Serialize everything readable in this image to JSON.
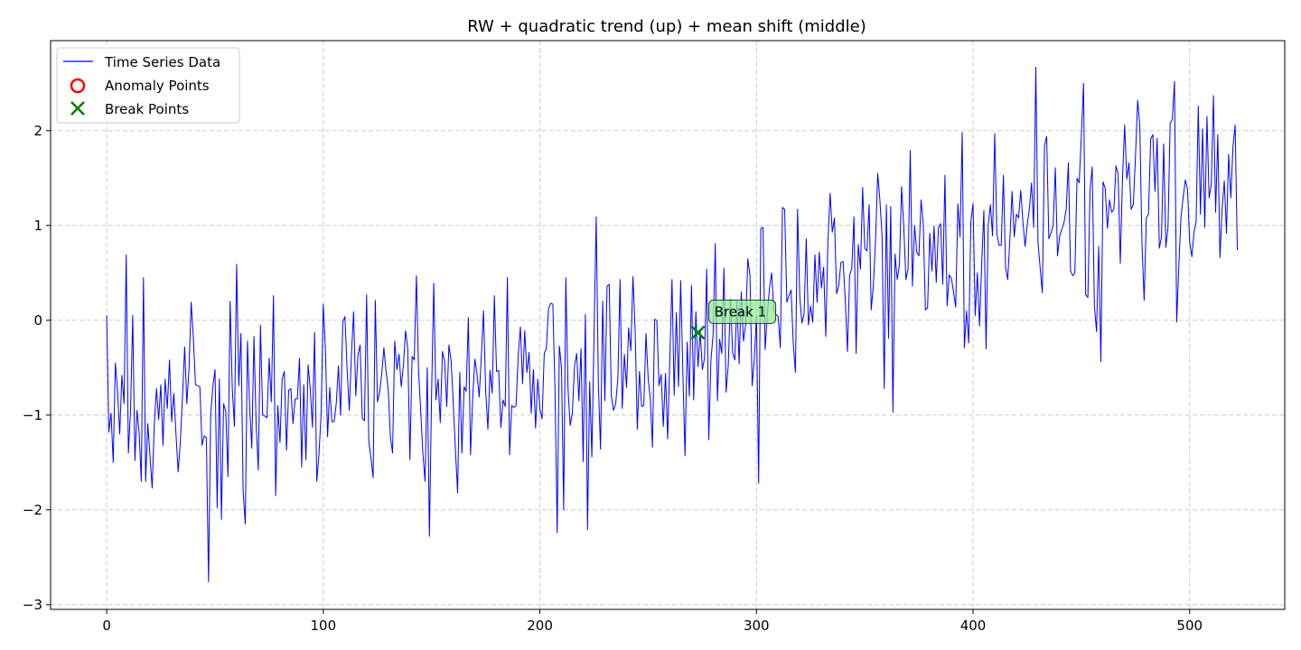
{
  "chart_data": {
    "type": "line",
    "title": "RW + quadratic trend (up) + mean shift (middle)",
    "xlabel": "",
    "ylabel": "",
    "xlim": [
      -25.9,
      543.9
    ],
    "ylim": [
      -3.05,
      2.95
    ],
    "x_ticks": [
      0,
      100,
      200,
      300,
      400,
      500
    ],
    "y_ticks": [
      -3,
      -2,
      -1,
      0,
      1,
      2
    ],
    "x_tick_labels": [
      "0",
      "100",
      "200",
      "300",
      "400",
      "500"
    ],
    "y_tick_labels": [
      "−3",
      "−2",
      "−1",
      "0",
      "1",
      "2"
    ],
    "grid": true,
    "legend_position": "top-left",
    "legend": [
      {
        "label": "Time Series Data",
        "marker": "line",
        "color": "#0000ff"
      },
      {
        "label": "Anomaly Points",
        "marker": "circle-open",
        "color": "#ff0000"
      },
      {
        "label": "Break Points",
        "marker": "x",
        "color": "#008000"
      }
    ],
    "series": [
      {
        "name": "Time Series Data",
        "color": "#0000ff",
        "x_start": 0,
        "x_step": 1,
        "y": [
          0.05,
          -1.18,
          -0.98,
          -1.5,
          -0.45,
          -0.75,
          -1.2,
          -0.58,
          -0.88,
          0.69,
          -1.4,
          -0.95,
          0.05,
          -1.48,
          -0.95,
          -1.2,
          -1.7,
          0.45,
          -1.7,
          -1.09,
          -1.43,
          -1.77,
          -1.1,
          -0.72,
          -1.05,
          -0.68,
          -1.32,
          -0.62,
          -0.93,
          -0.42,
          -1.07,
          -0.77,
          -1.2,
          -1.6,
          -1.29,
          -0.81,
          -0.28,
          -0.88,
          -0.52,
          0.19,
          -0.18,
          -0.68,
          -0.69,
          -0.7,
          -1.32,
          -1.22,
          -1.24,
          -2.76,
          -1.0,
          -0.7,
          -0.52,
          -1.98,
          -0.62,
          -2.1,
          -0.88,
          -0.96,
          -1.65,
          0.2,
          -0.72,
          -1.12,
          0.59,
          -0.69,
          -0.14,
          -1.8,
          -2.15,
          -0.22,
          -0.91,
          -1.35,
          -0.17,
          -1.1,
          -1.58,
          -0.05,
          -1.0,
          -1.01,
          -1.03,
          -0.4,
          -0.86,
          0.26,
          -1.85,
          -0.9,
          -1.29,
          -0.62,
          -0.54,
          -1.37,
          -0.74,
          -0.72,
          -1.09,
          -0.83,
          -0.83,
          -0.4,
          -1.55,
          -0.68,
          -1.47,
          -0.47,
          -0.72,
          -1.13,
          -0.13,
          -1.7,
          -1.42,
          -0.99,
          0.17,
          -0.31,
          -1.23,
          -0.71,
          -1.07,
          -1.07,
          -0.88,
          -0.48,
          -1.0,
          -0.02,
          0.04,
          -0.52,
          -0.95,
          -0.36,
          0.09,
          -0.8,
          -0.37,
          -0.26,
          -1.03,
          -1.06,
          0.27,
          -1.28,
          -1.45,
          -1.66,
          0.21,
          -0.86,
          -0.76,
          -0.56,
          -0.29,
          -0.54,
          -0.73,
          -1.23,
          -1.4,
          -0.22,
          -0.52,
          -0.36,
          -0.7,
          -0.48,
          -0.11,
          -0.3,
          -1.47,
          -0.38,
          -0.42,
          0.47,
          -0.54,
          -0.97,
          -1.41,
          -1.7,
          -0.5,
          -2.28,
          -0.78,
          0.39,
          -0.84,
          -0.62,
          -1.08,
          -0.33,
          -0.43,
          -0.91,
          -0.26,
          -0.43,
          -0.87,
          -1.37,
          -1.82,
          -0.55,
          -1.4,
          -0.7,
          -0.75,
          0.03,
          -1.42,
          -0.82,
          -0.41,
          -0.57,
          -0.81,
          -0.37,
          0.1,
          -0.75,
          -1.15,
          -0.53,
          -0.77,
          0.26,
          -0.54,
          -0.53,
          -1.13,
          -0.84,
          -0.91,
          0.45,
          -1.42,
          -0.9,
          -0.92,
          -0.9,
          -0.37,
          -0.07,
          -0.67,
          -0.11,
          -0.55,
          -0.34,
          -0.98,
          -0.52,
          -1.14,
          -0.62,
          -0.94,
          -1.04,
          -0.35,
          -0.3,
          0.12,
          0.18,
          0.17,
          -0.73,
          -2.24,
          -0.27,
          -0.5,
          -2.0,
          0.45,
          -0.72,
          -1.11,
          -0.98,
          -0.48,
          -0.35,
          -0.85,
          -0.3,
          -1.49,
          0.06,
          -2.21,
          -0.65,
          -1.44,
          -0.15,
          1.09,
          -0.68,
          -1.36,
          0.2,
          -0.85,
          0.36,
          0.38,
          -0.8,
          -0.95,
          -0.88,
          -0.61,
          0.43,
          -0.93,
          -0.36,
          -0.71,
          -0.08,
          -0.32,
          0.46,
          -0.1,
          -1.15,
          -0.54,
          -0.91,
          -0.9,
          -0.14,
          -0.61,
          -0.83,
          -1.34,
          0.01,
          0.0,
          -0.69,
          -0.57,
          -1.12,
          -0.56,
          -1.25,
          -0.4,
          0.43,
          -0.79,
          0.08,
          -0.7,
          0.42,
          -0.55,
          -1.43,
          -0.23,
          -0.8,
          0.37,
          -0.84,
          0.09,
          -0.49,
          -0.12,
          -0.52,
          -0.4,
          0.54,
          -1.26,
          -0.42,
          -0.15,
          0.81,
          -0.85,
          -0.2,
          -0.35,
          0.55,
          -0.76,
          -0.47,
          0.22,
          -0.34,
          -0.42,
          0.2,
          -0.46,
          0.3,
          -0.22,
          -0.05,
          0.65,
          0.47,
          -0.69,
          -0.41,
          0.05,
          -1.72,
          0.97,
          0.98,
          -0.31,
          0.06,
          0.34,
          0.5,
          0.1,
          0.06,
          0.04,
          -0.29,
          1.19,
          1.17,
          0.19,
          0.26,
          0.32,
          -0.24,
          -0.55,
          1.17,
          0.26,
          -0.03,
          0.07,
          0.86,
          -0.05,
          0.15,
          -0.02,
          0.69,
          0.19,
          0.72,
          0.34,
          0.56,
          -0.17,
          0.84,
          1.34,
          0.93,
          1.08,
          0.28,
          0.37,
          0.61,
          0.62,
          0.21,
          -0.33,
          0.47,
          0.55,
          1.09,
          -0.35,
          0.8,
          0.54,
          1.4,
          0.76,
          0.73,
          1.22,
          0.11,
          0.37,
          0.84,
          1.55,
          1.27,
          0.89,
          -0.72,
          1.22,
          -0.19,
          1.2,
          -0.97,
          0.7,
          0.43,
          0.58,
          1.41,
          0.99,
          0.43,
          0.54,
          1.79,
          0.36,
          1.0,
          0.72,
          0.68,
          1.27,
          1.02,
          0.11,
          0.13,
          0.92,
          0.52,
          0.99,
          0.4,
          0.98,
          1.02,
          0.38,
          1.53,
          0.15,
          0.48,
          0.44,
          0.3,
          0.14,
          1.23,
          0.88,
          1.98,
          -0.29,
          0.1,
          -0.24,
          1.04,
          1.23,
          0.05,
          0.5,
          -0.06,
          0.6,
          1.16,
          -0.3,
          1.0,
          1.22,
          0.89,
          1.97,
          0.91,
          0.79,
          0.79,
          1.53,
          0.56,
          0.43,
          0.86,
          1.36,
          0.88,
          1.12,
          1.08,
          1.37,
          1.04,
          0.78,
          1.01,
          1.18,
          1.45,
          0.98,
          2.67,
          0.82,
          0.55,
          0.29,
          1.84,
          1.94,
          0.86,
          0.92,
          1.0,
          1.61,
          0.68,
          0.89,
          0.96,
          1.03,
          1.17,
          1.66,
          0.52,
          0.47,
          0.5,
          1.5,
          1.45,
          1.95,
          2.5,
          0.27,
          0.24,
          1.37,
          1.62,
          0.16,
          -0.12,
          0.78,
          -0.44,
          1.46,
          1.39,
          0.97,
          1.27,
          1.14,
          1.17,
          1.63,
          1.54,
          0.6,
          1.49,
          2.06,
          1.49,
          1.66,
          1.17,
          1.22,
          1.73,
          2.32,
          2.05,
          0.8,
          0.21,
          1.08,
          1.12,
          1.91,
          1.96,
          1.36,
          1.92,
          0.76,
          0.88,
          1.86,
          0.77,
          0.98,
          2.08,
          2.12,
          2.52,
          -0.02,
          0.58,
          1.09,
          1.3,
          1.48,
          1.38,
          0.82,
          0.67,
          0.93,
          1.04,
          2.26,
          1.12,
          2.02,
          0.98,
          2.15,
          1.29,
          1.43,
          2.37,
          1.14,
          1.96,
          0.66,
          1.18,
          1.47,
          0.92,
          1.75,
          1.29,
          1.83,
          2.06,
          0.74
        ]
      }
    ],
    "anomaly_points": [],
    "break_points": [
      {
        "x": 273,
        "y": -0.13,
        "label": "Break 1"
      }
    ]
  }
}
